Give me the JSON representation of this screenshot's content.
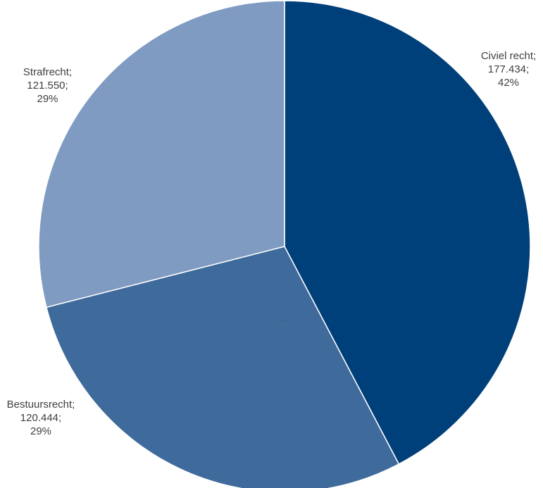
{
  "chart_data": {
    "type": "pie",
    "slices": [
      {
        "name": "Civiel recht",
        "value": 177434,
        "value_label": "177.434;",
        "percent_label": "42%",
        "color": "#00407A"
      },
      {
        "name": "Bestuursrecht",
        "value": 120444,
        "value_label": "120.444;",
        "percent_label": "29%",
        "color": "#3F6A9C"
      },
      {
        "name": "Strafrecht",
        "value": 121550,
        "value_label": "121.550;",
        "percent_label": "29%",
        "color": "#7F9BC1"
      }
    ],
    "labels": {
      "civiel": {
        "name": "Civiel  recht;",
        "value": "177.434;",
        "percent": "42%"
      },
      "straf": {
        "name": "Strafrecht;",
        "value": "121.550;",
        "percent": "29%"
      },
      "bestuur": {
        "name": "Bestuursrecht;",
        "value": "120.444;",
        "percent": "29%"
      }
    },
    "center_mark": "-"
  }
}
